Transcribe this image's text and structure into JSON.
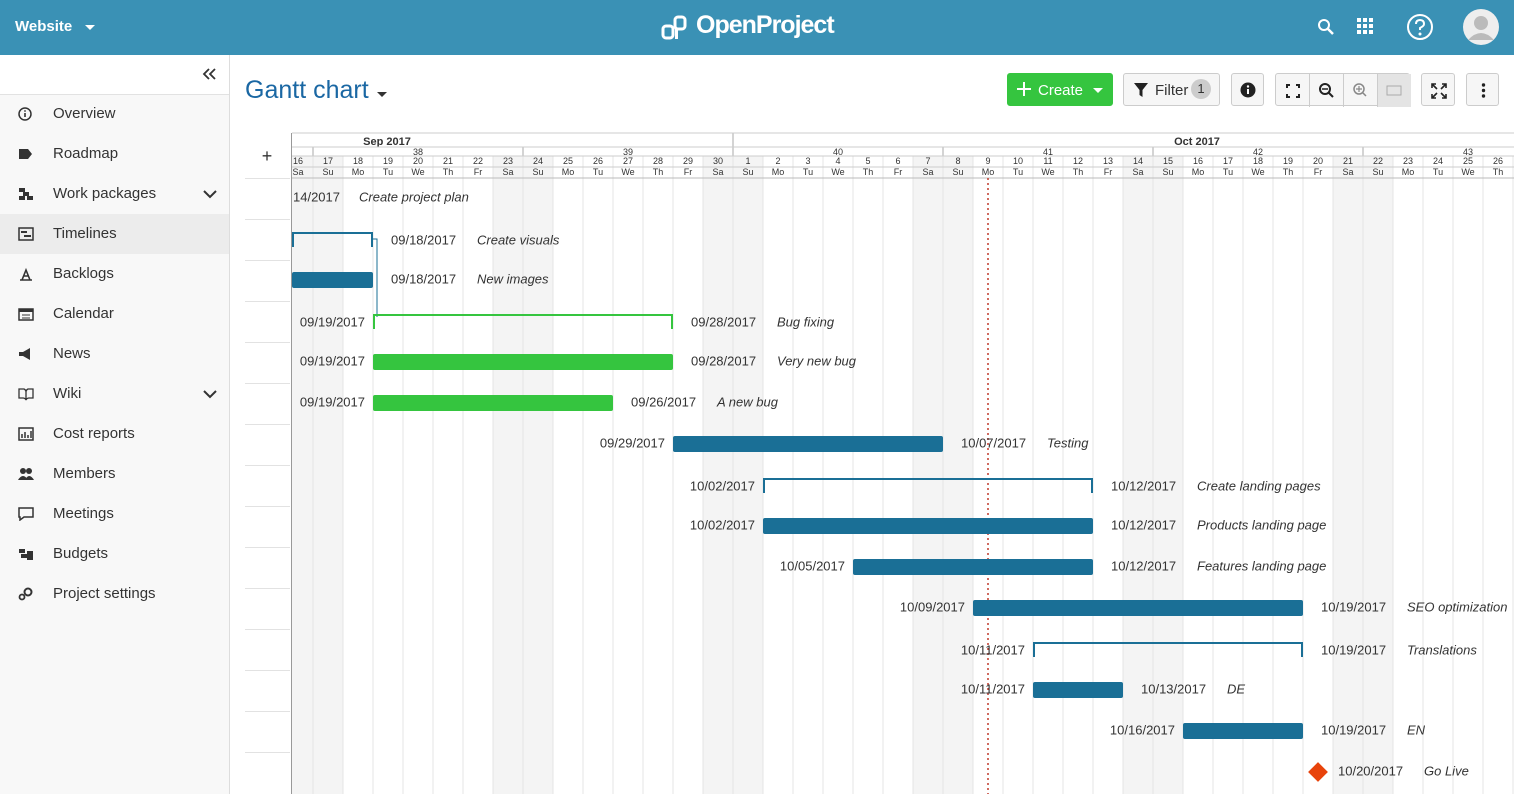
{
  "header": {
    "project": "Website",
    "logo": "OpenProject"
  },
  "sidebar": {
    "items": [
      {
        "label": "Overview",
        "expandable": false
      },
      {
        "label": "Roadmap",
        "expandable": false
      },
      {
        "label": "Work packages",
        "expandable": true
      },
      {
        "label": "Timelines",
        "expandable": false,
        "active": true
      },
      {
        "label": "Backlogs",
        "expandable": false
      },
      {
        "label": "Calendar",
        "expandable": false
      },
      {
        "label": "News",
        "expandable": false
      },
      {
        "label": "Wiki",
        "expandable": true
      },
      {
        "label": "Cost reports",
        "expandable": false
      },
      {
        "label": "Members",
        "expandable": false
      },
      {
        "label": "Meetings",
        "expandable": false
      },
      {
        "label": "Budgets",
        "expandable": false
      },
      {
        "label": "Project settings",
        "expandable": false
      }
    ]
  },
  "toolbar": {
    "title": "Gantt chart",
    "create": "Create",
    "filter": "Filter",
    "filter_count": "1"
  },
  "timeline": {
    "months": [
      "Sep 2017",
      "Oct 2017"
    ],
    "weeks": [
      "38",
      "39",
      "40",
      "41",
      "42",
      "43"
    ],
    "days": [
      {
        "num": "16",
        "dow": "Sa"
      },
      {
        "num": "17",
        "dow": "Su"
      },
      {
        "num": "18",
        "dow": "Mo"
      },
      {
        "num": "19",
        "dow": "Tu"
      },
      {
        "num": "20",
        "dow": "We"
      },
      {
        "num": "21",
        "dow": "Th"
      },
      {
        "num": "22",
        "dow": "Fr"
      },
      {
        "num": "23",
        "dow": "Sa"
      },
      {
        "num": "24",
        "dow": "Su"
      },
      {
        "num": "25",
        "dow": "Mo"
      },
      {
        "num": "26",
        "dow": "Tu"
      },
      {
        "num": "27",
        "dow": "We"
      },
      {
        "num": "28",
        "dow": "Th"
      },
      {
        "num": "29",
        "dow": "Fr"
      },
      {
        "num": "30",
        "dow": "Sa"
      },
      {
        "num": "1",
        "dow": "Su"
      },
      {
        "num": "2",
        "dow": "Mo"
      },
      {
        "num": "3",
        "dow": "Tu"
      },
      {
        "num": "4",
        "dow": "We"
      },
      {
        "num": "5",
        "dow": "Th"
      },
      {
        "num": "6",
        "dow": "Fr"
      },
      {
        "num": "7",
        "dow": "Sa"
      },
      {
        "num": "8",
        "dow": "Su"
      },
      {
        "num": "9",
        "dow": "Mo"
      },
      {
        "num": "10",
        "dow": "Tu"
      },
      {
        "num": "11",
        "dow": "We"
      },
      {
        "num": "12",
        "dow": "Th"
      },
      {
        "num": "13",
        "dow": "Fr"
      },
      {
        "num": "14",
        "dow": "Sa"
      },
      {
        "num": "15",
        "dow": "Su"
      },
      {
        "num": "16",
        "dow": "Mo"
      },
      {
        "num": "17",
        "dow": "Tu"
      },
      {
        "num": "18",
        "dow": "We"
      },
      {
        "num": "19",
        "dow": "Th"
      },
      {
        "num": "20",
        "dow": "Fr"
      },
      {
        "num": "21",
        "dow": "Sa"
      },
      {
        "num": "22",
        "dow": "Su"
      },
      {
        "num": "23",
        "dow": "Mo"
      },
      {
        "num": "24",
        "dow": "Tu"
      },
      {
        "num": "25",
        "dow": "We"
      },
      {
        "num": "26",
        "dow": "Th"
      }
    ]
  },
  "tasks": [
    {
      "name": "Create project plan",
      "end": "14/2017",
      "kind": "none"
    },
    {
      "name": "Create visuals",
      "end": "09/18/2017",
      "kind": "bracket",
      "color": "#1a6f96"
    },
    {
      "name": "New images",
      "end": "09/18/2017",
      "kind": "bar",
      "color": "#1a6f96"
    },
    {
      "name": "Bug fixing",
      "start": "09/19/2017",
      "end": "09/28/2017",
      "kind": "bracket",
      "color": "#35c53f"
    },
    {
      "name": "Very new bug",
      "start": "09/19/2017",
      "end": "09/28/2017",
      "kind": "bar",
      "color": "#35c53f"
    },
    {
      "name": "A new bug",
      "start": "09/19/2017",
      "end": "09/26/2017",
      "kind": "bar",
      "color": "#35c53f"
    },
    {
      "name": "Testing",
      "start": "09/29/2017",
      "end": "10/07/2017",
      "kind": "bar",
      "color": "#1a6f96"
    },
    {
      "name": "Create landing pages",
      "start": "10/02/2017",
      "end": "10/12/2017",
      "kind": "bracket",
      "color": "#1a6f96"
    },
    {
      "name": "Products landing page",
      "start": "10/02/2017",
      "end": "10/12/2017",
      "kind": "bar",
      "color": "#1a6f96"
    },
    {
      "name": "Features landing page",
      "start": "10/05/2017",
      "end": "10/12/2017",
      "kind": "bar",
      "color": "#1a6f96"
    },
    {
      "name": "SEO optimization",
      "start": "10/09/2017",
      "end": "10/19/2017",
      "kind": "bar",
      "color": "#1a6f96"
    },
    {
      "name": "Translations",
      "start": "10/11/2017",
      "end": "10/19/2017",
      "kind": "bracket",
      "color": "#1a6f96"
    },
    {
      "name": "DE",
      "start": "10/11/2017",
      "end": "10/13/2017",
      "kind": "bar",
      "color": "#1a6f96"
    },
    {
      "name": "EN",
      "start": "10/16/2017",
      "end": "10/19/2017",
      "kind": "bar",
      "color": "#1a6f96"
    },
    {
      "name": "Go Live",
      "end": "10/20/2017",
      "kind": "milestone",
      "color": "#e8430b"
    }
  ]
}
